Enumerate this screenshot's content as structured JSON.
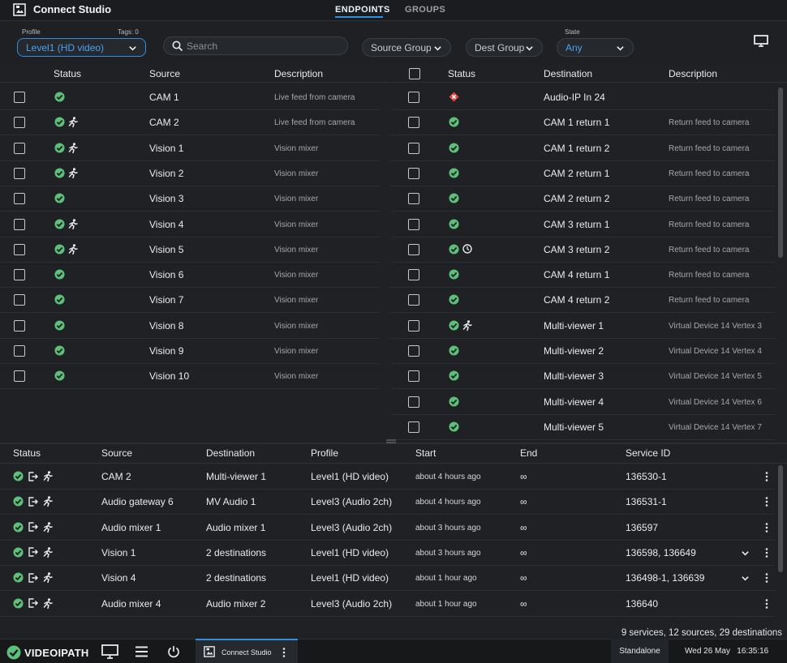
{
  "app": {
    "title": "Connect Studio"
  },
  "tabs": [
    {
      "label": "ENDPOINTS",
      "active": true
    },
    {
      "label": "GROUPS",
      "active": false
    }
  ],
  "filters": {
    "profile_label": "Profile",
    "tags_label": "Tags: 0",
    "profile_value": "Level1 (HD video)",
    "search_placeholder": "Search",
    "source_group": "Source Group",
    "dest_group": "Dest Group",
    "state_label": "State",
    "state_value": "Any"
  },
  "sources": {
    "headers": {
      "status": "Status",
      "source": "Source",
      "description": "Description"
    },
    "rows": [
      {
        "name": "CAM 1",
        "desc": "Live feed from camera",
        "status": "ok",
        "active": false
      },
      {
        "name": "CAM 2",
        "desc": "Live feed from camera",
        "status": "ok",
        "active": true
      },
      {
        "name": "Vision 1",
        "desc": "Vision mixer",
        "status": "ok",
        "active": true
      },
      {
        "name": "Vision 2",
        "desc": "Vision mixer",
        "status": "ok",
        "active": true
      },
      {
        "name": "Vision 3",
        "desc": "Vision mixer",
        "status": "ok",
        "active": false
      },
      {
        "name": "Vision 4",
        "desc": "Vision mixer",
        "status": "ok",
        "active": true
      },
      {
        "name": "Vision 5",
        "desc": "Vision mixer",
        "status": "ok",
        "active": true
      },
      {
        "name": "Vision 6",
        "desc": "Vision mixer",
        "status": "ok",
        "active": false
      },
      {
        "name": "Vision 7",
        "desc": "Vision mixer",
        "status": "ok",
        "active": false
      },
      {
        "name": "Vision 8",
        "desc": "Vision mixer",
        "status": "ok",
        "active": false
      },
      {
        "name": "Vision 9",
        "desc": "Vision mixer",
        "status": "ok",
        "active": false
      },
      {
        "name": "Vision 10",
        "desc": "Vision mixer",
        "status": "ok",
        "active": false
      }
    ]
  },
  "destinations": {
    "headers": {
      "status": "Status",
      "destination": "Destination",
      "description": "Description"
    },
    "rows": [
      {
        "name": "Audio-IP In 24",
        "desc": "",
        "status": "error",
        "extra": ""
      },
      {
        "name": "CAM 1 return 1",
        "desc": "Return feed to camera",
        "status": "ok",
        "extra": ""
      },
      {
        "name": "CAM 1 return 2",
        "desc": "Return feed to camera",
        "status": "ok",
        "extra": ""
      },
      {
        "name": "CAM 2 return 1",
        "desc": "Return feed to camera",
        "status": "ok",
        "extra": ""
      },
      {
        "name": "CAM 2 return 2",
        "desc": "Return feed to camera",
        "status": "ok",
        "extra": ""
      },
      {
        "name": "CAM 3 return 1",
        "desc": "Return feed to camera",
        "status": "ok",
        "extra": ""
      },
      {
        "name": "CAM 3 return 2",
        "desc": "Return feed to camera",
        "status": "ok",
        "extra": "clock"
      },
      {
        "name": "CAM 4 return 1",
        "desc": "Return feed to camera",
        "status": "ok",
        "extra": ""
      },
      {
        "name": "CAM 4 return 2",
        "desc": "Return feed to camera",
        "status": "ok",
        "extra": ""
      },
      {
        "name": "Multi-viewer 1",
        "desc": "Virtual Device 14 Vertex 3",
        "status": "ok",
        "extra": "run"
      },
      {
        "name": "Multi-viewer 2",
        "desc": "Virtual Device 14 Vertex 4",
        "status": "ok",
        "extra": ""
      },
      {
        "name": "Multi-viewer 3",
        "desc": "Virtual Device 14 Vertex 5",
        "status": "ok",
        "extra": ""
      },
      {
        "name": "Multi-viewer 4",
        "desc": "Virtual Device 14 Vertex 6",
        "status": "ok",
        "extra": ""
      },
      {
        "name": "Multi-viewer 5",
        "desc": "Virtual Device 14 Vertex 7",
        "status": "ok",
        "extra": ""
      }
    ]
  },
  "services": {
    "headers": {
      "status": "Status",
      "source": "Source",
      "destination": "Destination",
      "profile": "Profile",
      "start": "Start",
      "end": "End",
      "service_id": "Service ID"
    },
    "rows": [
      {
        "source": "CAM 2",
        "destination": "Multi-viewer 1",
        "profile": "Level1 (HD video)",
        "start": "about 4 hours ago",
        "end": "∞",
        "service_id": "136530-1",
        "expand": false
      },
      {
        "source": "Audio gateway 6",
        "destination": "MV Audio 1",
        "profile": "Level3 (Audio 2ch)",
        "start": "about 4 hours ago",
        "end": "∞",
        "service_id": "136531-1",
        "expand": false
      },
      {
        "source": "Audio mixer 1",
        "destination": "Audio mixer 1",
        "profile": "Level3 (Audio 2ch)",
        "start": "about 3 hours ago",
        "end": "∞",
        "service_id": "136597",
        "expand": false
      },
      {
        "source": "Vision 1",
        "destination": "2 destinations",
        "profile": "Level1 (HD video)",
        "start": "about 3 hours ago",
        "end": "∞",
        "service_id": "136598, 136649",
        "expand": true
      },
      {
        "source": "Vision 4",
        "destination": "2 destinations",
        "profile": "Level1 (HD video)",
        "start": "about 1 hour ago",
        "end": "∞",
        "service_id": "136498-1, 136639",
        "expand": true
      },
      {
        "source": "Audio mixer 4",
        "destination": "Audio mixer 2",
        "profile": "Level3 (Audio 2ch)",
        "start": "about 1 hour ago",
        "end": "∞",
        "service_id": "136640",
        "expand": false
      }
    ],
    "summary": "9 services, 12 sources, 29 destinations"
  },
  "bottombar": {
    "brand": "VIDEOIPATH",
    "task": "Connect Studio",
    "mode": "Standalone",
    "date": "Wed 26 May",
    "time": "16:35:16"
  },
  "colors": {
    "accent": "#2f8fe0",
    "ok": "#5cc07a",
    "error": "#e2453c"
  }
}
